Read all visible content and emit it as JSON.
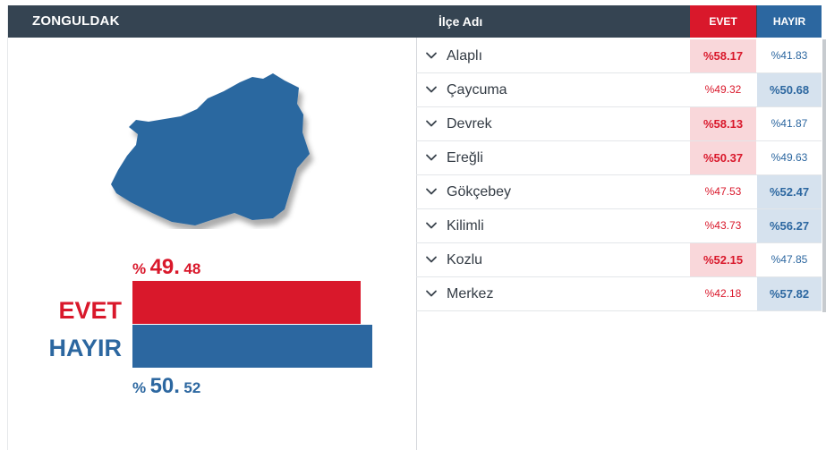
{
  "province": {
    "name": "ZONGULDAK"
  },
  "results": {
    "evet": {
      "label": "EVET",
      "sign": "%",
      "int": "49.",
      "dec": "48",
      "value": 49.48,
      "color": "#d9182b"
    },
    "hayir": {
      "label": "HAYIR",
      "sign": "%",
      "int": "50.",
      "dec": "52",
      "value": 50.52,
      "color": "#2c67a0"
    }
  },
  "table": {
    "headers": {
      "name": "İlçe Adı",
      "evet": "EVET",
      "hayir": "HAYIR"
    },
    "rows": [
      {
        "name": "Alaplı",
        "evet": "%58.17",
        "hayir": "%41.83",
        "winner": "evet"
      },
      {
        "name": "Çaycuma",
        "evet": "%49.32",
        "hayir": "%50.68",
        "winner": "hayir"
      },
      {
        "name": "Devrek",
        "evet": "%58.13",
        "hayir": "%41.87",
        "winner": "evet"
      },
      {
        "name": "Ereğli",
        "evet": "%50.37",
        "hayir": "%49.63",
        "winner": "evet"
      },
      {
        "name": "Gökçebey",
        "evet": "%47.53",
        "hayir": "%52.47",
        "winner": "hayir"
      },
      {
        "name": "Kilimli",
        "evet": "%43.73",
        "hayir": "%56.27",
        "winner": "hayir"
      },
      {
        "name": "Kozlu",
        "evet": "%52.15",
        "hayir": "%47.85",
        "winner": "evet"
      },
      {
        "name": "Merkez",
        "evet": "%42.18",
        "hayir": "%57.82",
        "winner": "hayir"
      }
    ]
  },
  "chart_data": {
    "type": "bar",
    "categories": [
      "EVET",
      "HAYIR"
    ],
    "values": [
      49.48,
      50.52
    ],
    "colors": [
      "#d9182b",
      "#2c67a0"
    ]
  },
  "icons": {
    "row_toggle": "chevron-down-icon",
    "map": "province-map-shape"
  }
}
